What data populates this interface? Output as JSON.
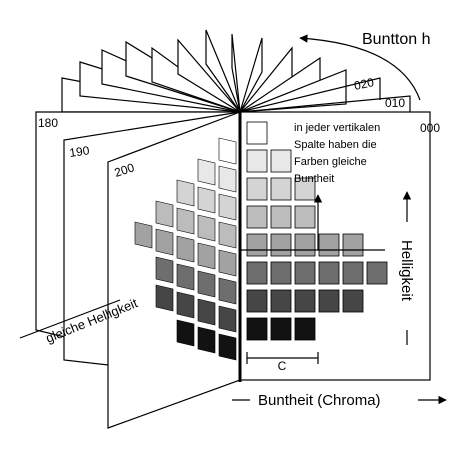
{
  "title": "Buntton h",
  "page_labels": [
    "020",
    "010",
    "000",
    "180",
    "190",
    "200"
  ],
  "note_lines": [
    "in jeder vertikalen",
    "Spalte haben die",
    "Farben gleiche",
    "Buntheit"
  ],
  "vertical_axis": "Helligkeit",
  "diagonal_axis": "gleiche Helligkeit",
  "chroma_step": "C",
  "horizontal_axis": "Buntheit (Chroma)"
}
